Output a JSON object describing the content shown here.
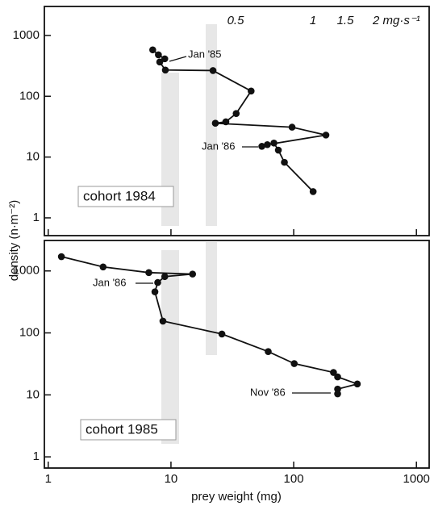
{
  "chart_data": [
    {
      "type": "line",
      "label": "cohort 1984",
      "ylabel": "density (n·m⁻²)",
      "rate_labels": [
        "0.5",
        "1",
        "1.5",
        "2 mg·s⁻¹"
      ],
      "annotations": [
        "Jan '85",
        "Jan '86"
      ],
      "color": "#111111",
      "log_x": true,
      "log_y": true,
      "x": [
        7.1,
        7.9,
        8.9,
        8.1,
        9.0,
        22,
        45,
        34,
        28,
        23,
        97,
        183,
        61,
        55,
        69,
        75,
        84,
        144
      ],
      "values": [
        580,
        480,
        413,
        366,
        270,
        265,
        122,
        52,
        38,
        36,
        31,
        23,
        16,
        15,
        17,
        13,
        8.2,
        2.7
      ],
      "xlim": [
        0.93,
        1270
      ],
      "ylim": [
        0.51,
        3000
      ],
      "xticks": [
        1,
        10,
        100,
        1000
      ],
      "yticks": [
        1,
        10,
        100,
        1000
      ]
    },
    {
      "type": "line",
      "label": "cohort 1985",
      "xlabel": "prey weight (mg)",
      "annotations": [
        "Jan '86",
        "Nov '86"
      ],
      "color": "#111111",
      "log_x": true,
      "log_y": true,
      "x": [
        1.28,
        2.8,
        6.6,
        15,
        8.9,
        7.8,
        7.4,
        8.6,
        26,
        62,
        101,
        211,
        228,
        330,
        228,
        228
      ],
      "values": [
        1700,
        1160,
        940,
        890,
        810,
        650,
        460,
        155,
        96,
        50,
        32,
        23,
        19.5,
        15,
        12.4,
        10.4
      ],
      "xlim": [
        0.93,
        1270
      ],
      "ylim": [
        0.66,
        3100
      ],
      "xticks": [
        1,
        10,
        100,
        1000
      ],
      "yticks": [
        1,
        10,
        100,
        1000
      ]
    }
  ]
}
